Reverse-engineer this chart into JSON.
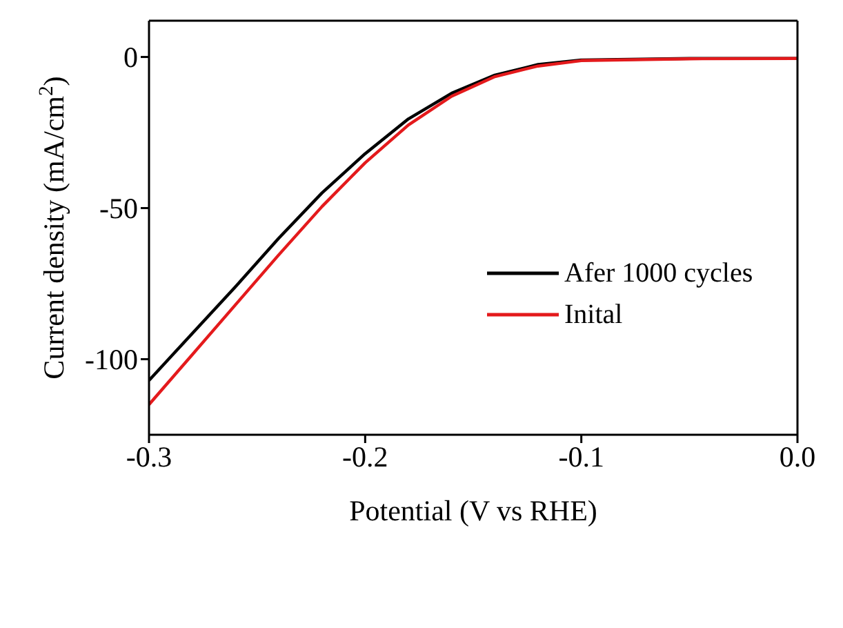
{
  "chart_data": {
    "type": "line",
    "xlabel": "Potential (V vs RHE)",
    "ylabel": "Current density (mA/cm$^{2}$)",
    "xlim": [
      -0.3,
      0.0
    ],
    "xticks": [
      {
        "value": -0.3,
        "label": "-0.3"
      },
      {
        "value": -0.2,
        "label": "-0.2"
      },
      {
        "value": -0.1,
        "label": "-0.1"
      },
      {
        "value": 0,
        "label": "0.0"
      }
    ],
    "ylim": [
      -125,
      12
    ],
    "yticks": [
      -100,
      -50,
      0
    ],
    "x": [
      -0.3,
      -0.28,
      -0.26,
      -0.24,
      -0.22,
      -0.2,
      -0.18,
      -0.16,
      -0.14,
      -0.12,
      -0.1,
      -0.05,
      0
    ],
    "series": [
      {
        "name": "Afer 1000 cycles",
        "color": "#000000",
        "values": [
          -107,
          -91.5,
          -76,
          -60,
          -45,
          -32,
          -20.5,
          -12,
          -6,
          -2.5,
          -1,
          -0.5,
          -0.5
        ]
      },
      {
        "name": "Inital",
        "color": "#e41a1c",
        "values": [
          -115,
          -98.5,
          -82,
          -65.5,
          -49.5,
          -35,
          -22.5,
          -13,
          -6.5,
          -3,
          -1.2,
          -0.6,
          -0.5
        ]
      }
    ],
    "grid": false,
    "legend": "right",
    "marker": "none",
    "line_style": "solid"
  }
}
